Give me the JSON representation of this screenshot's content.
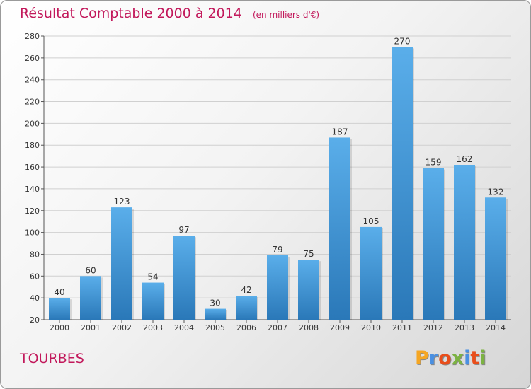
{
  "chart_title": "Résultat Comptable 2000 à 2014",
  "chart_subtitle": "(en milliers d'€)",
  "place_name": "TOURBES",
  "logo_text": "Proxiti",
  "logo_colors": [
    "#f5a623",
    "#4a90e2",
    "#e94e1b",
    "#7cb342",
    "#4a90e2",
    "#e94e1b",
    "#7cb342"
  ],
  "colors": {
    "title": "#c2185b",
    "bar_top": "#5aaeea",
    "bar_bottom": "#2a78b8"
  },
  "chart_data": {
    "type": "bar",
    "categories": [
      "2000",
      "2001",
      "2002",
      "2003",
      "2004",
      "2005",
      "2006",
      "2007",
      "2008",
      "2009",
      "2010",
      "2011",
      "2012",
      "2013",
      "2014"
    ],
    "values": [
      40,
      60,
      123,
      54,
      97,
      30,
      42,
      79,
      75,
      187,
      105,
      270,
      159,
      162,
      132
    ],
    "title": "Résultat Comptable 2000 à 2014",
    "subtitle": "(en milliers d'€)",
    "xlabel": "",
    "ylabel": "",
    "ylim": [
      20,
      280
    ],
    "yticks": [
      20,
      40,
      60,
      80,
      100,
      120,
      140,
      160,
      180,
      200,
      220,
      240,
      260,
      280
    ],
    "grid": true,
    "data_labels": true
  }
}
